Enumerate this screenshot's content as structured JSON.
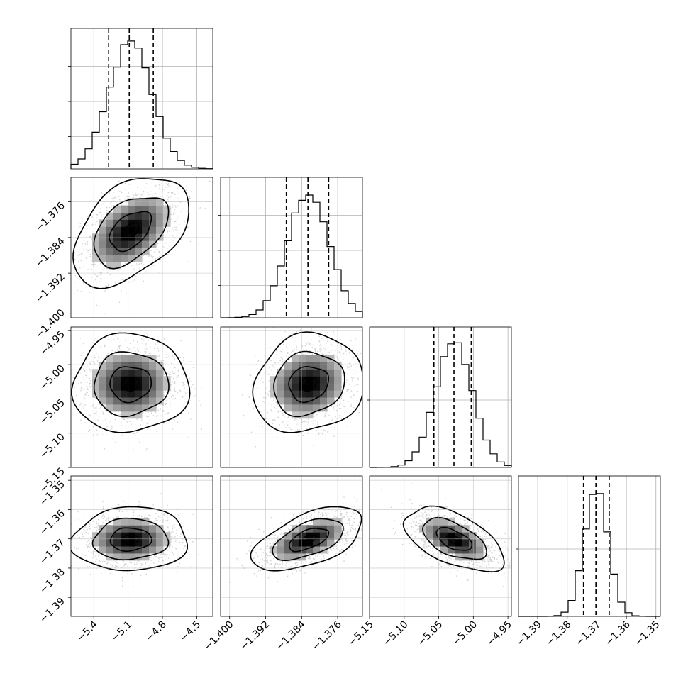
{
  "chart_data": {
    "type": "corner",
    "title": "",
    "parameters": [
      {
        "name": "",
        "range": [
          -5.6,
          -4.36
        ],
        "ticks": [
          -5.4,
          -5.1,
          -4.8,
          -4.5
        ],
        "tick_labels": [
          "−5.4",
          "−5.1",
          "−4.8",
          "−4.5"
        ],
        "quantiles": [
          -5.27,
          -5.09,
          -4.88
        ],
        "mean": -5.08,
        "sd": 0.19
      },
      {
        "name": "",
        "range": [
          -1.402,
          -1.3705
        ],
        "ticks": [
          -1.4,
          -1.392,
          -1.384,
          -1.376
        ],
        "tick_labels": [
          "−1.400",
          "−1.392",
          "−1.384",
          "−1.376"
        ],
        "quantiles": [
          -1.3874,
          -1.3826,
          -1.378
        ],
        "mean": -1.3825,
        "sd": 0.0046
      },
      {
        "name": "",
        "range": [
          -5.15,
          -4.945
        ],
        "ticks": [
          -5.15,
          -5.1,
          -5.05,
          -5.0,
          -4.95
        ],
        "tick_labels": [
          "−5.15",
          "−5.10",
          "−5.05",
          "−5.00",
          "−4.95"
        ],
        "quantiles": [
          -5.057,
          -5.028,
          -5.003
        ],
        "mean": -5.028,
        "sd": 0.027
      },
      {
        "name": "",
        "range": [
          -1.3965,
          -1.3485
        ],
        "ticks": [
          -1.39,
          -1.38,
          -1.37,
          -1.36,
          -1.35
        ],
        "tick_labels": [
          "−1.39",
          "−1.38",
          "−1.37",
          "−1.36",
          "−1.35"
        ],
        "y_tick_labels": [
          "−1.35",
          "−1.36",
          "−1.37",
          "−1.38",
          "−1.39"
        ],
        "quantiles": [
          -1.3745,
          -1.3703,
          -1.3658
        ],
        "mean": -1.3702,
        "sd": 0.0041
      }
    ],
    "correlations": {
      "1-0": 0.45,
      "2-0": 0.02,
      "2-1": 0.12,
      "3-0": 0.05,
      "3-1": 0.55,
      "3-2": -0.55
    },
    "histogram_bins": 20,
    "contour_levels": [
      0.5,
      1.0,
      1.5,
      2.0
    ],
    "grid": true,
    "color": "#000000",
    "point_color": "#bfbfbf"
  }
}
